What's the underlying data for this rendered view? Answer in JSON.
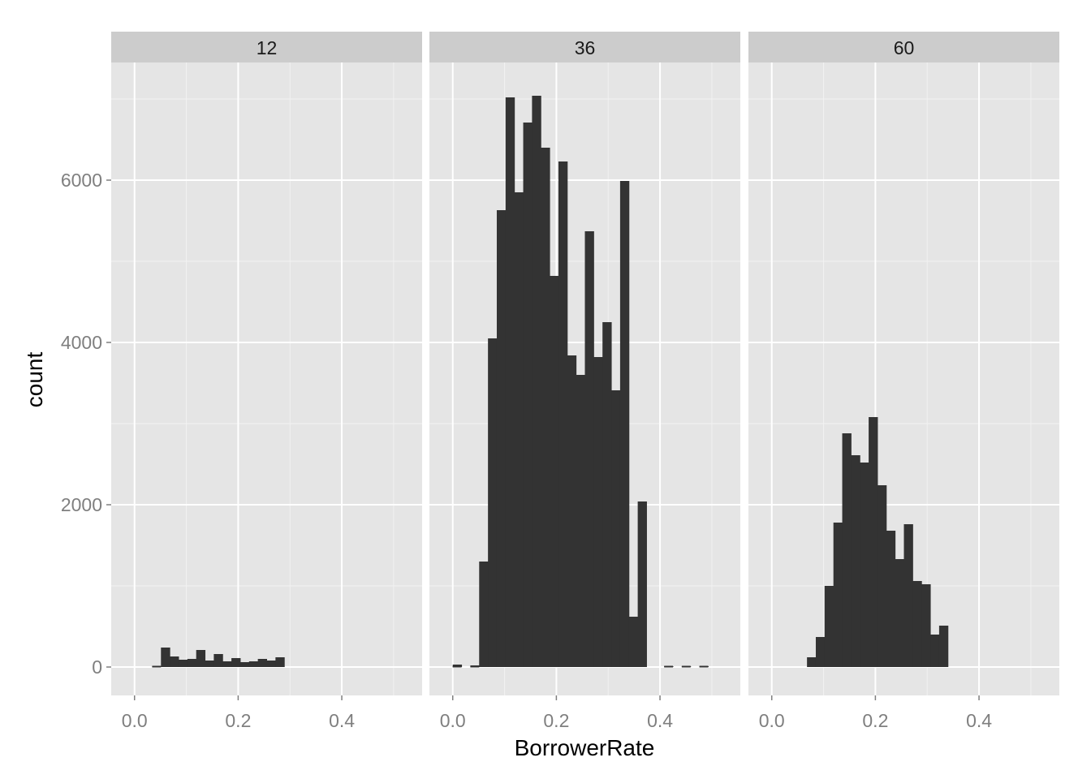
{
  "chart_data": {
    "type": "bar",
    "chart_kind": "faceted histogram",
    "xlabel": "BorrowerRate",
    "ylabel": "count",
    "xlim": [
      -0.045,
      0.555
    ],
    "ylim": [
      -350,
      7450
    ],
    "x_ticks": [
      0.0,
      0.2,
      0.4
    ],
    "x_tick_labels": [
      "0.0",
      "0.2",
      "0.4"
    ],
    "y_ticks": [
      0,
      2000,
      4000,
      6000
    ],
    "y_tick_labels": [
      "0",
      "2000",
      "4000",
      "6000"
    ],
    "bin_width": 0.017,
    "grid": true,
    "bar_color": "#333333",
    "panel_background": "#e5e5e5",
    "strip_background": "#cccccc",
    "facets": [
      {
        "label": "12",
        "x_start": 0.034,
        "values": [
          10,
          240,
          130,
          90,
          100,
          210,
          80,
          160,
          70,
          110,
          60,
          70,
          100,
          80,
          120
        ]
      },
      {
        "label": "36",
        "x_start": 0.0,
        "values": [
          30,
          0,
          20,
          1300,
          4050,
          5630,
          7020,
          5850,
          6710,
          7040,
          6400,
          4820,
          6230,
          3840,
          3600,
          5370,
          3820,
          4250,
          3410,
          5990,
          620,
          2040,
          0,
          0,
          10,
          0,
          10,
          0,
          10,
          0
        ]
      },
      {
        "label": "60",
        "x_start": 0.068,
        "values": [
          120,
          370,
          1000,
          1780,
          2880,
          2610,
          2520,
          3080,
          2240,
          1680,
          1330,
          1760,
          1060,
          1020,
          400,
          510
        ]
      }
    ]
  }
}
